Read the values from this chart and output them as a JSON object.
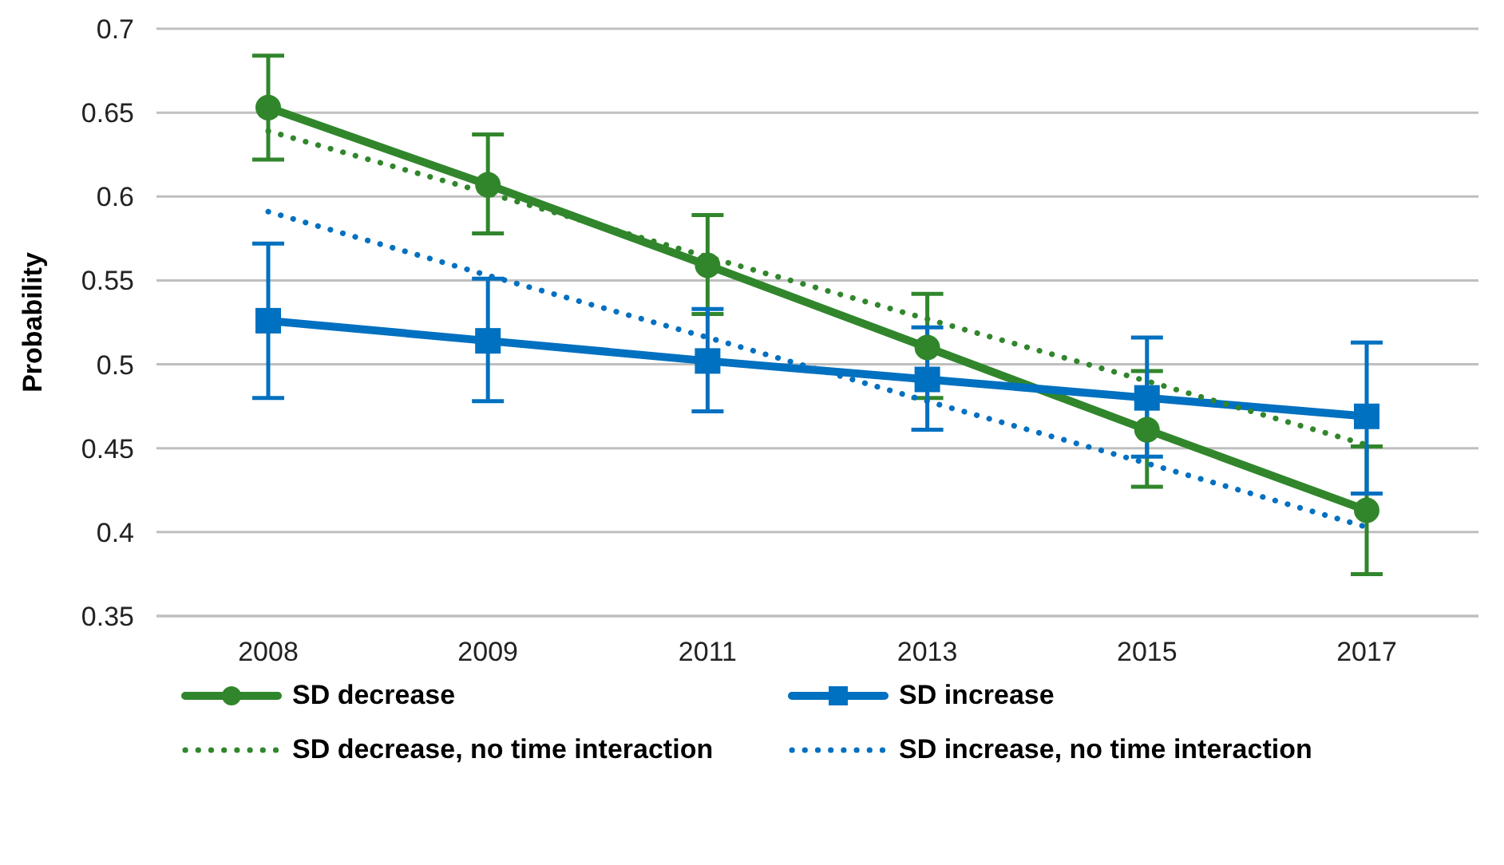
{
  "chart_data": {
    "type": "line",
    "ylabel": "Probability",
    "categories": [
      "2008",
      "2009",
      "2011",
      "2013",
      "2015",
      "2017"
    ],
    "ylim": [
      0.35,
      0.7
    ],
    "yticks": [
      0.35,
      0.4,
      0.45,
      0.5,
      0.55,
      0.6,
      0.65,
      0.7
    ],
    "grid": "y",
    "legend": "bottom",
    "series": [
      {
        "name": "SD decrease",
        "color": "#31862c",
        "marker": "circle",
        "line_style": "solid",
        "values": [
          0.653,
          0.607,
          0.559,
          0.51,
          0.461,
          0.413
        ],
        "errors": [
          [
            0.622,
            0.684
          ],
          [
            0.578,
            0.637
          ],
          [
            0.53,
            0.589
          ],
          [
            0.48,
            0.542
          ],
          [
            0.427,
            0.496
          ],
          [
            0.375,
            0.451
          ]
        ]
      },
      {
        "name": "SD increase",
        "color": "#0070c0",
        "marker": "square",
        "line_style": "solid",
        "values": [
          0.526,
          0.514,
          0.502,
          0.491,
          0.48,
          0.469
        ],
        "errors": [
          [
            0.48,
            0.572
          ],
          [
            0.478,
            0.551
          ],
          [
            0.472,
            0.533
          ],
          [
            0.461,
            0.522
          ],
          [
            0.445,
            0.516
          ],
          [
            0.423,
            0.513
          ]
        ]
      },
      {
        "name": "SD decrease, no time interaction",
        "color": "#31862c",
        "marker": "none",
        "line_style": "dotted",
        "values": [
          0.639,
          0.602,
          0.564,
          0.527,
          0.49,
          0.452
        ]
      },
      {
        "name": "SD increase, no time interaction",
        "color": "#0070c0",
        "marker": "none",
        "line_style": "dotted",
        "values": [
          0.591,
          0.553,
          0.516,
          0.478,
          0.441,
          0.403
        ]
      }
    ]
  }
}
